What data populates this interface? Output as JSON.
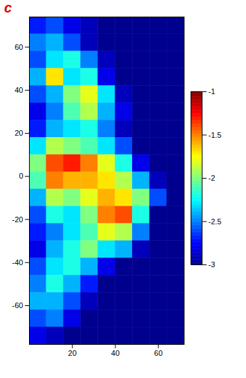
{
  "chart_data": {
    "type": "heatmap",
    "panel_label": "c",
    "x": [
      4,
      12,
      20,
      28,
      36,
      44,
      52,
      60,
      68
    ],
    "y": [
      70,
      62,
      54,
      46,
      38,
      30,
      22,
      14,
      6,
      -2,
      -10,
      -18,
      -26,
      -34,
      -42,
      -50,
      -58,
      -66,
      -74
    ],
    "values": [
      [
        -2.7,
        -2.6,
        -2.8,
        -2.9,
        -3,
        -3,
        -3,
        -3,
        -3
      ],
      [
        -2.5,
        -2.4,
        -2.6,
        -2.9,
        -3,
        -3,
        -3,
        -3,
        -3
      ],
      [
        -2.6,
        -2.3,
        -2.2,
        -2.5,
        -2.9,
        -3,
        -3,
        -3,
        -3
      ],
      [
        -2.4,
        -1.7,
        -2.3,
        -2.2,
        -2.8,
        -3,
        -3,
        -3,
        -3
      ],
      [
        -2.6,
        -2.4,
        -2.0,
        -1.8,
        -2.3,
        -2.9,
        -3,
        -3,
        -3
      ],
      [
        -2.8,
        -2.5,
        -2.1,
        -1.9,
        -2.4,
        -2.8,
        -3,
        -3,
        -3
      ],
      [
        -2.7,
        -2.4,
        -2.3,
        -2.2,
        -2.5,
        -2.9,
        -3,
        -3,
        -3
      ],
      [
        -2.3,
        -1.9,
        -2.0,
        -2.1,
        -2.3,
        -2.6,
        -3,
        -3,
        -3
      ],
      [
        -2.0,
        -1.4,
        -1.3,
        -1.5,
        -1.8,
        -2.2,
        -2.8,
        -3,
        -3
      ],
      [
        -2.1,
        -1.5,
        -1.6,
        -1.6,
        -1.7,
        -1.9,
        -2.4,
        -2.9,
        -3
      ],
      [
        -2.4,
        -1.9,
        -2.0,
        -1.8,
        -1.6,
        -1.7,
        -2.0,
        -2.6,
        -3
      ],
      [
        -2.6,
        -2.2,
        -2.3,
        -2.0,
        -1.5,
        -1.4,
        -2.2,
        -3,
        -3
      ],
      [
        -2.7,
        -2.5,
        -2.3,
        -2.1,
        -1.8,
        -1.9,
        -2.5,
        -3,
        -3
      ],
      [
        -2.8,
        -2.4,
        -2.2,
        -2.0,
        -2.3,
        -2.4,
        -2.9,
        -3,
        -3
      ],
      [
        -2.6,
        -2.3,
        -2.2,
        -2.4,
        -2.8,
        -3,
        -3,
        -3,
        -3
      ],
      [
        -2.5,
        -2.2,
        -2.4,
        -2.7,
        -3,
        -3,
        -3,
        -3,
        -3
      ],
      [
        -2.4,
        -2.4,
        -2.6,
        -2.9,
        -3,
        -3,
        -3,
        -3,
        -3
      ],
      [
        -2.6,
        -2.5,
        -2.8,
        -3,
        -3,
        -3,
        -3,
        -3,
        -3
      ],
      [
        -2.8,
        -2.9,
        -3,
        -3,
        -3,
        -3,
        -3,
        -3,
        -3
      ]
    ],
    "xlim": [
      0,
      72
    ],
    "ylim": [
      -78,
      74
    ],
    "xticks": [
      20,
      40,
      60
    ],
    "yticks": [
      -60,
      -40,
      -20,
      0,
      20,
      40,
      60
    ],
    "color_range": [
      -3,
      -1
    ],
    "color_ticks": [
      -1,
      -1.5,
      -2,
      -2.5,
      -3
    ]
  }
}
